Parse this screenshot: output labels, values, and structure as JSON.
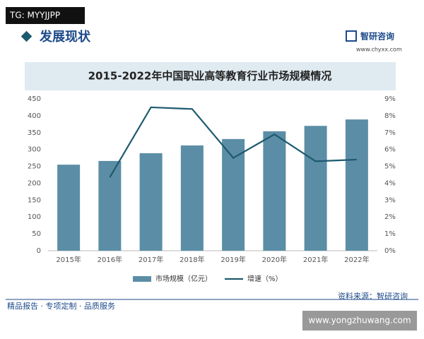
{
  "header": {
    "tag": "TG: MYYJJPP",
    "section": "发展现状",
    "brand": "智研咨询",
    "site": "www.chyxx.com"
  },
  "chart_data": {
    "type": "bar-line",
    "title": "2015-2022年中国职业高等教育行业市场规模情况",
    "categories": [
      "2015年",
      "2016年",
      "2017年",
      "2018年",
      "2019年",
      "2020年",
      "2021年",
      "2022年"
    ],
    "series": [
      {
        "name": "市场规模（亿元）",
        "type": "bar",
        "color": "#5b8ea6",
        "values": [
          255,
          266,
          289,
          312,
          331,
          354,
          370,
          389
        ]
      },
      {
        "name": "增速（%）",
        "type": "line",
        "axis": "y2",
        "color": "#1d5a6e",
        "values": [
          null,
          4.35,
          8.5,
          8.4,
          5.5,
          6.9,
          5.3,
          5.4
        ]
      }
    ],
    "ylim": [
      0,
      450
    ],
    "yticks": [
      0,
      50,
      100,
      150,
      200,
      250,
      300,
      350,
      400,
      450
    ],
    "y2lim": [
      0,
      9
    ],
    "y2ticks": [
      {
        "value": 0,
        "label": "0%"
      },
      {
        "value": 1,
        "label": "1%"
      },
      {
        "value": 2,
        "label": "2%"
      },
      {
        "value": 3,
        "label": "3%"
      },
      {
        "value": 4,
        "label": "4%"
      },
      {
        "value": 5,
        "label": "5%"
      },
      {
        "value": 6,
        "label": "6%"
      },
      {
        "value": 7,
        "label": "7%"
      },
      {
        "value": 8,
        "label": "8%"
      },
      {
        "value": 9,
        "label": "9%"
      }
    ],
    "legend": "bottom",
    "source": "资料来源：智研咨询"
  },
  "footer": {
    "slogan": "精品报告 · 专项定制 · 品质服务",
    "watermark": "www.yongzhuwang.com"
  }
}
